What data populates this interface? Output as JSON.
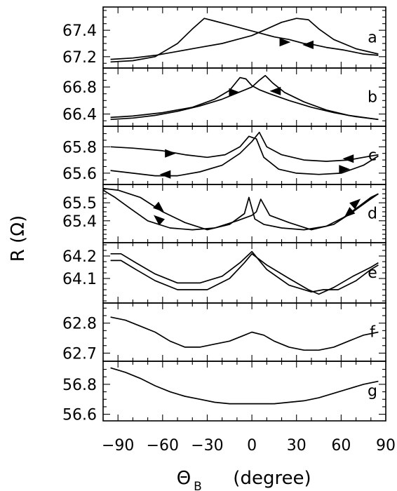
{
  "chart_data": {
    "type": "line",
    "ylabel": "R (Ω)",
    "xlabel_symbol": "Θ",
    "xlabel_subscript": "B",
    "xlabel_unit": "(degree)",
    "xlim": [
      -100,
      90
    ],
    "x_ticks": [
      -90,
      -60,
      -30,
      0,
      30,
      60,
      90
    ],
    "x_tick_labels": [
      "−90",
      "−60",
      "−30",
      "0",
      "30",
      "60",
      "90"
    ],
    "grid": false,
    "panels": [
      {
        "letter": "a",
        "ylim": [
          67.13,
          67.56
        ],
        "y_ticks": [
          67.2,
          67.4
        ],
        "y_tick_labels": [
          "67.2",
          "67.4"
        ],
        "series": [
          {
            "x": [
              -95,
              -80,
              -65,
              -50,
              -40,
              -32,
              -25,
              -15,
              -5,
              5,
              15,
              25,
              35,
              42,
              50,
              62,
              75,
              85
            ],
            "y": [
              67.16,
              67.17,
              67.2,
              67.3,
              67.41,
              67.49,
              67.47,
              67.44,
              67.41,
              67.38,
              67.35,
              67.33,
              67.3,
              67.29,
              67.27,
              67.25,
              67.22,
              67.21
            ]
          },
          {
            "x": [
              -95,
              -80,
              -65,
              -50,
              -35,
              -20,
              -10,
              0,
              10,
              20,
              30,
              38,
              45,
              55,
              70,
              85
            ],
            "y": [
              67.18,
              67.19,
              67.21,
              67.24,
              67.27,
              67.3,
              67.33,
              67.36,
              67.41,
              67.46,
              67.49,
              67.48,
              67.41,
              67.33,
              67.26,
              67.22
            ]
          }
        ],
        "arrows": [
          {
            "x": 22,
            "y": 67.31,
            "dir": "right"
          },
          {
            "x": 38,
            "y": 67.29,
            "dir": "left"
          }
        ]
      },
      {
        "letter": "b",
        "ylim": [
          66.25,
          67.05
        ],
        "y_ticks": [
          66.4,
          66.8
        ],
        "y_tick_labels": [
          "66.4",
          "66.8"
        ],
        "series": [
          {
            "x": [
              -95,
              -80,
              -60,
              -40,
              -25,
              -15,
              -8,
              -4,
              0,
              5,
              12,
              25,
              40,
              55,
              70,
              85
            ],
            "y": [
              66.35,
              66.37,
              66.42,
              66.5,
              66.62,
              66.75,
              66.94,
              66.92,
              66.82,
              66.76,
              66.7,
              66.6,
              66.5,
              66.42,
              66.36,
              66.32
            ]
          },
          {
            "x": [
              -95,
              -80,
              -65,
              -50,
              -35,
              -20,
              -10,
              0,
              5,
              9,
              14,
              22,
              35,
              50,
              65,
              85
            ],
            "y": [
              66.32,
              66.34,
              66.38,
              66.44,
              66.52,
              66.62,
              66.71,
              66.8,
              66.9,
              66.97,
              66.86,
              66.72,
              66.58,
              66.46,
              66.38,
              66.32
            ]
          }
        ],
        "arrows": [
          {
            "x": -12,
            "y": 66.72,
            "dir": "right"
          },
          {
            "x": 16,
            "y": 66.74,
            "dir": "left"
          }
        ]
      },
      {
        "letter": "c",
        "ylim": [
          65.53,
          65.94
        ],
        "y_ticks": [
          65.6,
          65.8
        ],
        "y_tick_labels": [
          "65.6",
          "65.8"
        ],
        "series": [
          {
            "x": [
              -95,
              -80,
              -60,
              -45,
              -30,
              -18,
              -8,
              -2,
              3,
              8,
              18,
              30,
              45,
              60,
              75,
              85
            ],
            "y": [
              65.8,
              65.79,
              65.77,
              65.74,
              65.72,
              65.74,
              65.8,
              65.88,
              65.86,
              65.72,
              65.63,
              65.6,
              65.59,
              65.6,
              65.66,
              65.73
            ]
          },
          {
            "x": [
              -95,
              -80,
              -65,
              -50,
              -35,
              -20,
              -8,
              0,
              5,
              10,
              20,
              35,
              50,
              65,
              80,
              85
            ],
            "y": [
              65.62,
              65.6,
              65.58,
              65.58,
              65.61,
              65.66,
              65.75,
              65.84,
              65.91,
              65.8,
              65.74,
              65.7,
              65.69,
              65.7,
              65.73,
              65.74
            ]
          }
        ],
        "arrows": [
          {
            "x": -55,
            "y": 65.75,
            "dir": "right"
          },
          {
            "x": -58,
            "y": 65.59,
            "dir": "left"
          },
          {
            "x": 65,
            "y": 65.71,
            "dir": "left"
          },
          {
            "x": 62,
            "y": 65.63,
            "dir": "right"
          }
        ]
      },
      {
        "letter": "d",
        "ylim": [
          65.29,
          65.59
        ],
        "y_ticks": [
          65.4,
          65.5
        ],
        "y_tick_labels": [
          "65.4",
          "65.5"
        ],
        "series": [
          {
            "x": [
              -100,
              -90,
              -75,
              -60,
              -45,
              -30,
              -15,
              -5,
              -2,
              2,
              8,
              20,
              35,
              50,
              62,
              72,
              80,
              85
            ],
            "y": [
              65.58,
              65.57,
              65.53,
              65.45,
              65.39,
              65.35,
              65.38,
              65.44,
              65.53,
              65.41,
              65.38,
              65.36,
              65.35,
              65.37,
              65.42,
              65.48,
              65.53,
              65.55
            ]
          },
          {
            "x": [
              -100,
              -92,
              -82,
              -70,
              -55,
              -40,
              -25,
              -10,
              0,
              3,
              6,
              12,
              25,
              40,
              55,
              68,
              78,
              85
            ],
            "y": [
              65.57,
              65.53,
              65.47,
              65.4,
              65.36,
              65.35,
              65.36,
              65.4,
              65.43,
              65.45,
              65.52,
              65.43,
              65.39,
              65.35,
              65.38,
              65.45,
              65.51,
              65.55
            ]
          }
        ],
        "arrows": [
          {
            "x": -62,
            "y": 65.47,
            "dir": "downright"
          },
          {
            "x": -63,
            "y": 65.41,
            "dir": "upleft"
          },
          {
            "x": 70,
            "y": 65.5,
            "dir": "upright"
          },
          {
            "x": 65,
            "y": 65.44,
            "dir": "downleft"
          }
        ]
      },
      {
        "letter": "e",
        "ylim": [
          64.0,
          64.25
        ],
        "y_ticks": [
          64.1,
          64.2
        ],
        "y_tick_labels": [
          "64.1",
          "64.2"
        ],
        "series": [
          {
            "x": [
              -95,
              -88,
              -78,
              -65,
              -50,
              -35,
              -20,
              -8,
              0,
              10,
              25,
              40,
              48,
              58,
              70,
              80,
              85
            ],
            "y": [
              64.21,
              64.21,
              64.17,
              64.12,
              64.08,
              64.08,
              64.11,
              64.17,
              64.22,
              64.14,
              64.07,
              64.04,
              64.05,
              64.05,
              64.09,
              64.14,
              64.16
            ]
          },
          {
            "x": [
              -95,
              -88,
              -78,
              -65,
              -50,
              -30,
              -15,
              -5,
              0,
              10,
              25,
              38,
              45,
              55,
              68,
              80,
              85
            ],
            "y": [
              64.18,
              64.18,
              64.14,
              64.09,
              64.05,
              64.05,
              64.1,
              64.17,
              64.21,
              64.16,
              64.1,
              64.05,
              64.03,
              64.06,
              64.11,
              64.15,
              64.17
            ]
          }
        ],
        "arrows": []
      },
      {
        "letter": "f",
        "ylim": [
          62.68,
          62.86
        ],
        "y_ticks": [
          62.7,
          62.8
        ],
        "y_tick_labels": [
          "62.7",
          "62.8"
        ],
        "series": [
          {
            "x": [
              -95,
              -85,
              -75,
              -65,
              -55,
              -45,
              -35,
              -25,
              -15,
              -5,
              0,
              8,
              15,
              25,
              35,
              45,
              55,
              65,
              75,
              85
            ],
            "y": [
              62.82,
              62.81,
              62.79,
              62.77,
              62.74,
              62.72,
              62.72,
              62.73,
              62.74,
              62.76,
              62.77,
              62.76,
              62.74,
              62.72,
              62.71,
              62.71,
              62.72,
              62.74,
              62.76,
              62.77
            ]
          }
        ],
        "arrows": []
      },
      {
        "letter": "g",
        "ylim": [
          56.57,
          56.94
        ],
        "y_ticks": [
          56.6,
          56.8
        ],
        "y_tick_labels": [
          "56.6",
          "56.8"
        ],
        "series": [
          {
            "x": [
              -95,
              -85,
              -75,
              -65,
              -55,
              -45,
              -35,
              -25,
              -15,
              -5,
              5,
              15,
              25,
              35,
              45,
              55,
              65,
              75,
              85
            ],
            "y": [
              56.91,
              56.88,
              56.84,
              56.79,
              56.75,
              56.72,
              56.7,
              56.68,
              56.67,
              56.67,
              56.67,
              56.67,
              56.68,
              56.69,
              56.71,
              56.74,
              56.77,
              56.8,
              56.82
            ]
          }
        ],
        "arrows": []
      }
    ]
  }
}
